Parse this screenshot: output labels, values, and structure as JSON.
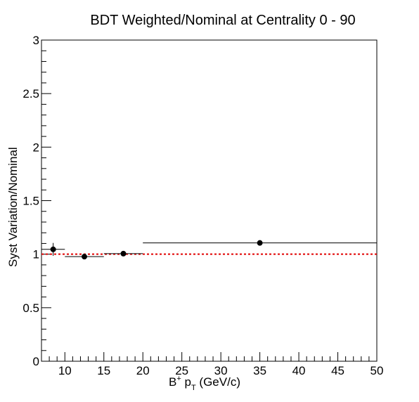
{
  "chart_data": {
    "type": "scatter",
    "title": "BDT Weighted/Nominal at Centrality 0 - 90",
    "xlabel": {
      "base": "B",
      "superscript": "+",
      "mid": " p",
      "subscript": "T",
      "tail": " (GeV/c)"
    },
    "ylabel": "Syst Variation/Nominal",
    "xlim": [
      7,
      50
    ],
    "ylim": [
      0,
      3
    ],
    "x_ticks": [
      10,
      15,
      20,
      25,
      30,
      35,
      40,
      45,
      50
    ],
    "x_tick_labels": [
      "10",
      "15",
      "20",
      "25",
      "30",
      "35",
      "40",
      "45",
      "50"
    ],
    "y_ticks": [
      0,
      0.5,
      1,
      1.5,
      2,
      2.5,
      3
    ],
    "y_tick_labels": [
      "0",
      "0.5",
      "1",
      "1.5",
      "2",
      "2.5",
      "3"
    ],
    "grid": false,
    "reference_line": {
      "y": 1.0,
      "color": "#e00000",
      "style": "dotted"
    },
    "series": [
      {
        "marker": "circle",
        "color": "#000000",
        "points": [
          {
            "x": 8.5,
            "xlow": 7,
            "xhigh": 10,
            "y": 1.045,
            "yerr": 0.06
          },
          {
            "x": 12.5,
            "xlow": 10,
            "xhigh": 15,
            "y": 0.977,
            "yerr": 0.01
          },
          {
            "x": 17.5,
            "xlow": 15,
            "xhigh": 20,
            "y": 1.005,
            "yerr": 0.01
          },
          {
            "x": 35,
            "xlow": 20,
            "xhigh": 50,
            "y": 1.105,
            "yerr": 0.01
          }
        ]
      }
    ]
  }
}
